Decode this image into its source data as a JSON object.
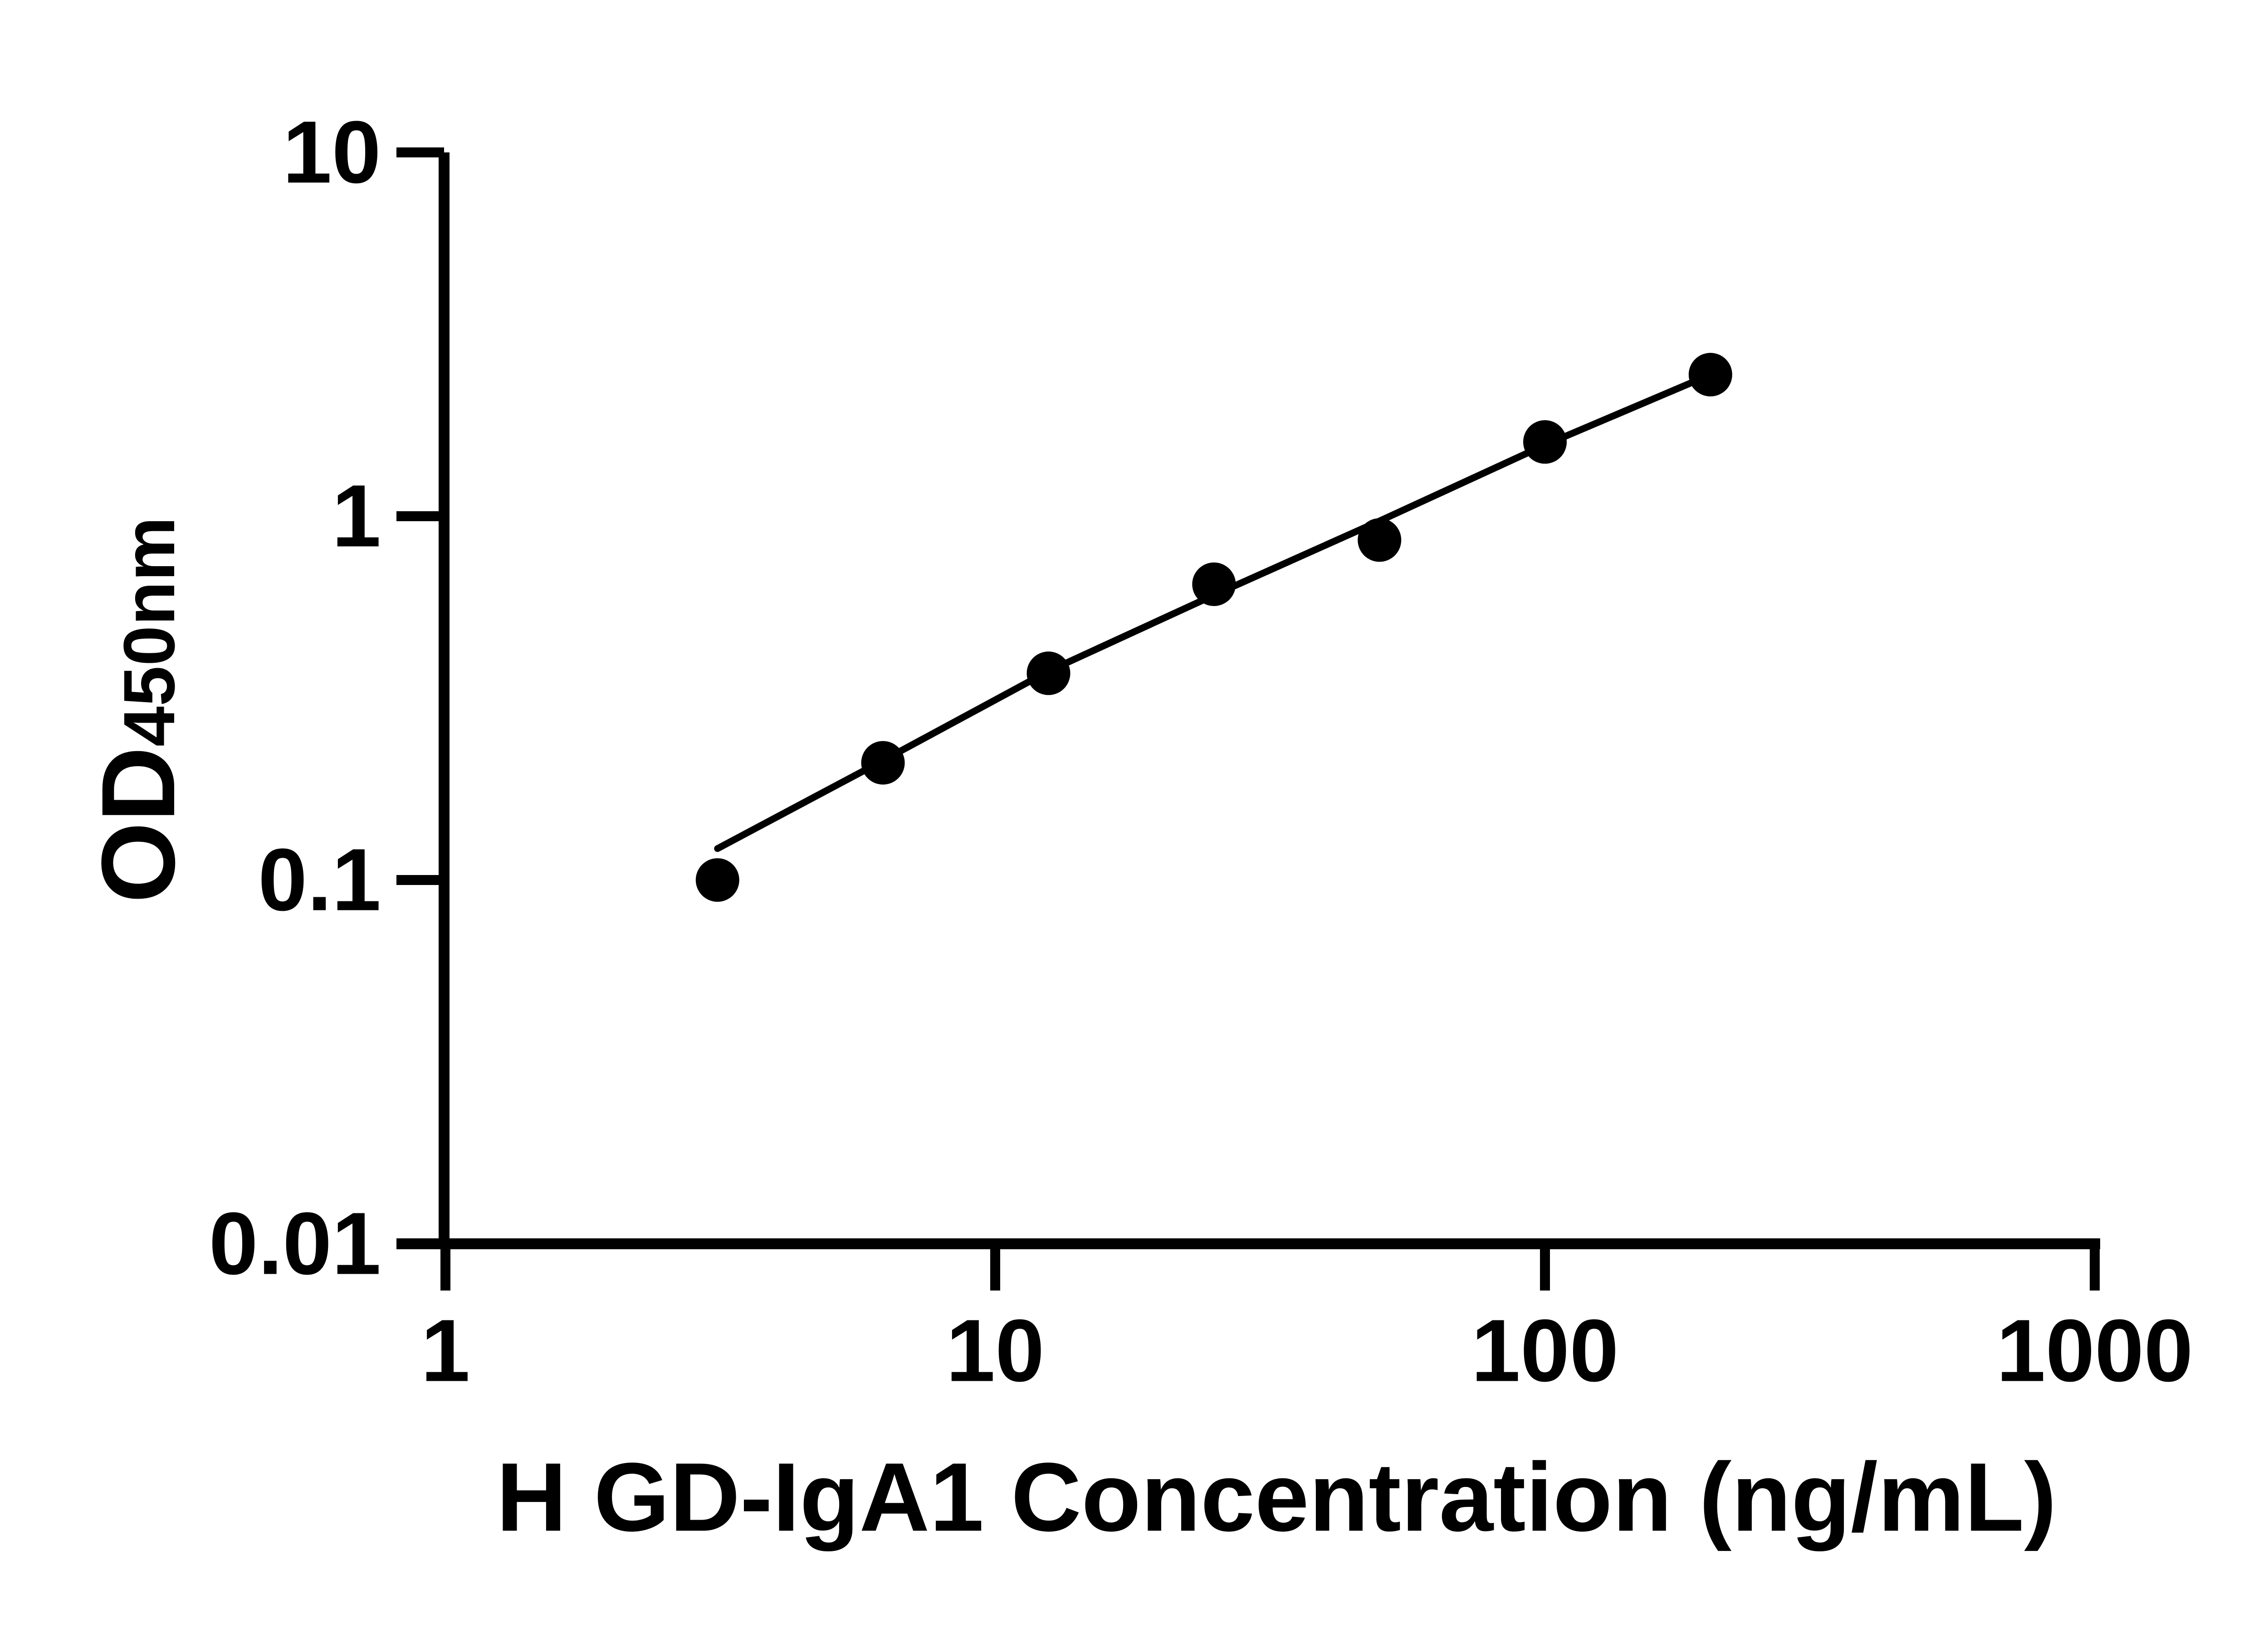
{
  "figure": {
    "background_color": "#ffffff",
    "ink_color": "#000000"
  },
  "axes": {
    "x_title": "H GD-IgA1 Concentration (ng/mL)",
    "y_title_main": "OD",
    "y_title_sub": "450nm",
    "x_tick_labels": [
      "1",
      "10",
      "100",
      "1000"
    ],
    "y_tick_labels": [
      "10",
      "1",
      "0.1",
      "0.01"
    ]
  },
  "chart_data": {
    "type": "scatter",
    "title": "",
    "xlabel": "H GD-IgA1 Concentration (ng/mL)",
    "ylabel": "OD450nm",
    "x_scale": "log10",
    "y_scale": "log10",
    "xlim": [
      1,
      1000
    ],
    "ylim": [
      0.01,
      10
    ],
    "x_ticks": [
      1,
      10,
      100,
      1000
    ],
    "y_ticks": [
      10,
      1,
      0.1,
      0.01
    ],
    "grid": false,
    "legend": "none",
    "marker": {
      "shape": "filled-circle",
      "color": "#000000"
    },
    "series": [
      {
        "x": [
          3.125,
          6.25,
          12.5,
          25,
          50,
          100,
          200
        ],
        "y": [
          0.1,
          0.21,
          0.37,
          0.65,
          0.86,
          1.6,
          2.45
        ]
      }
    ],
    "fit_line": {
      "x": [
        3.125,
        6.25,
        12.5,
        25,
        50,
        100,
        200
      ],
      "y": [
        0.122,
        0.213,
        0.375,
        0.607,
        0.97,
        1.57,
        2.45
      ]
    }
  }
}
